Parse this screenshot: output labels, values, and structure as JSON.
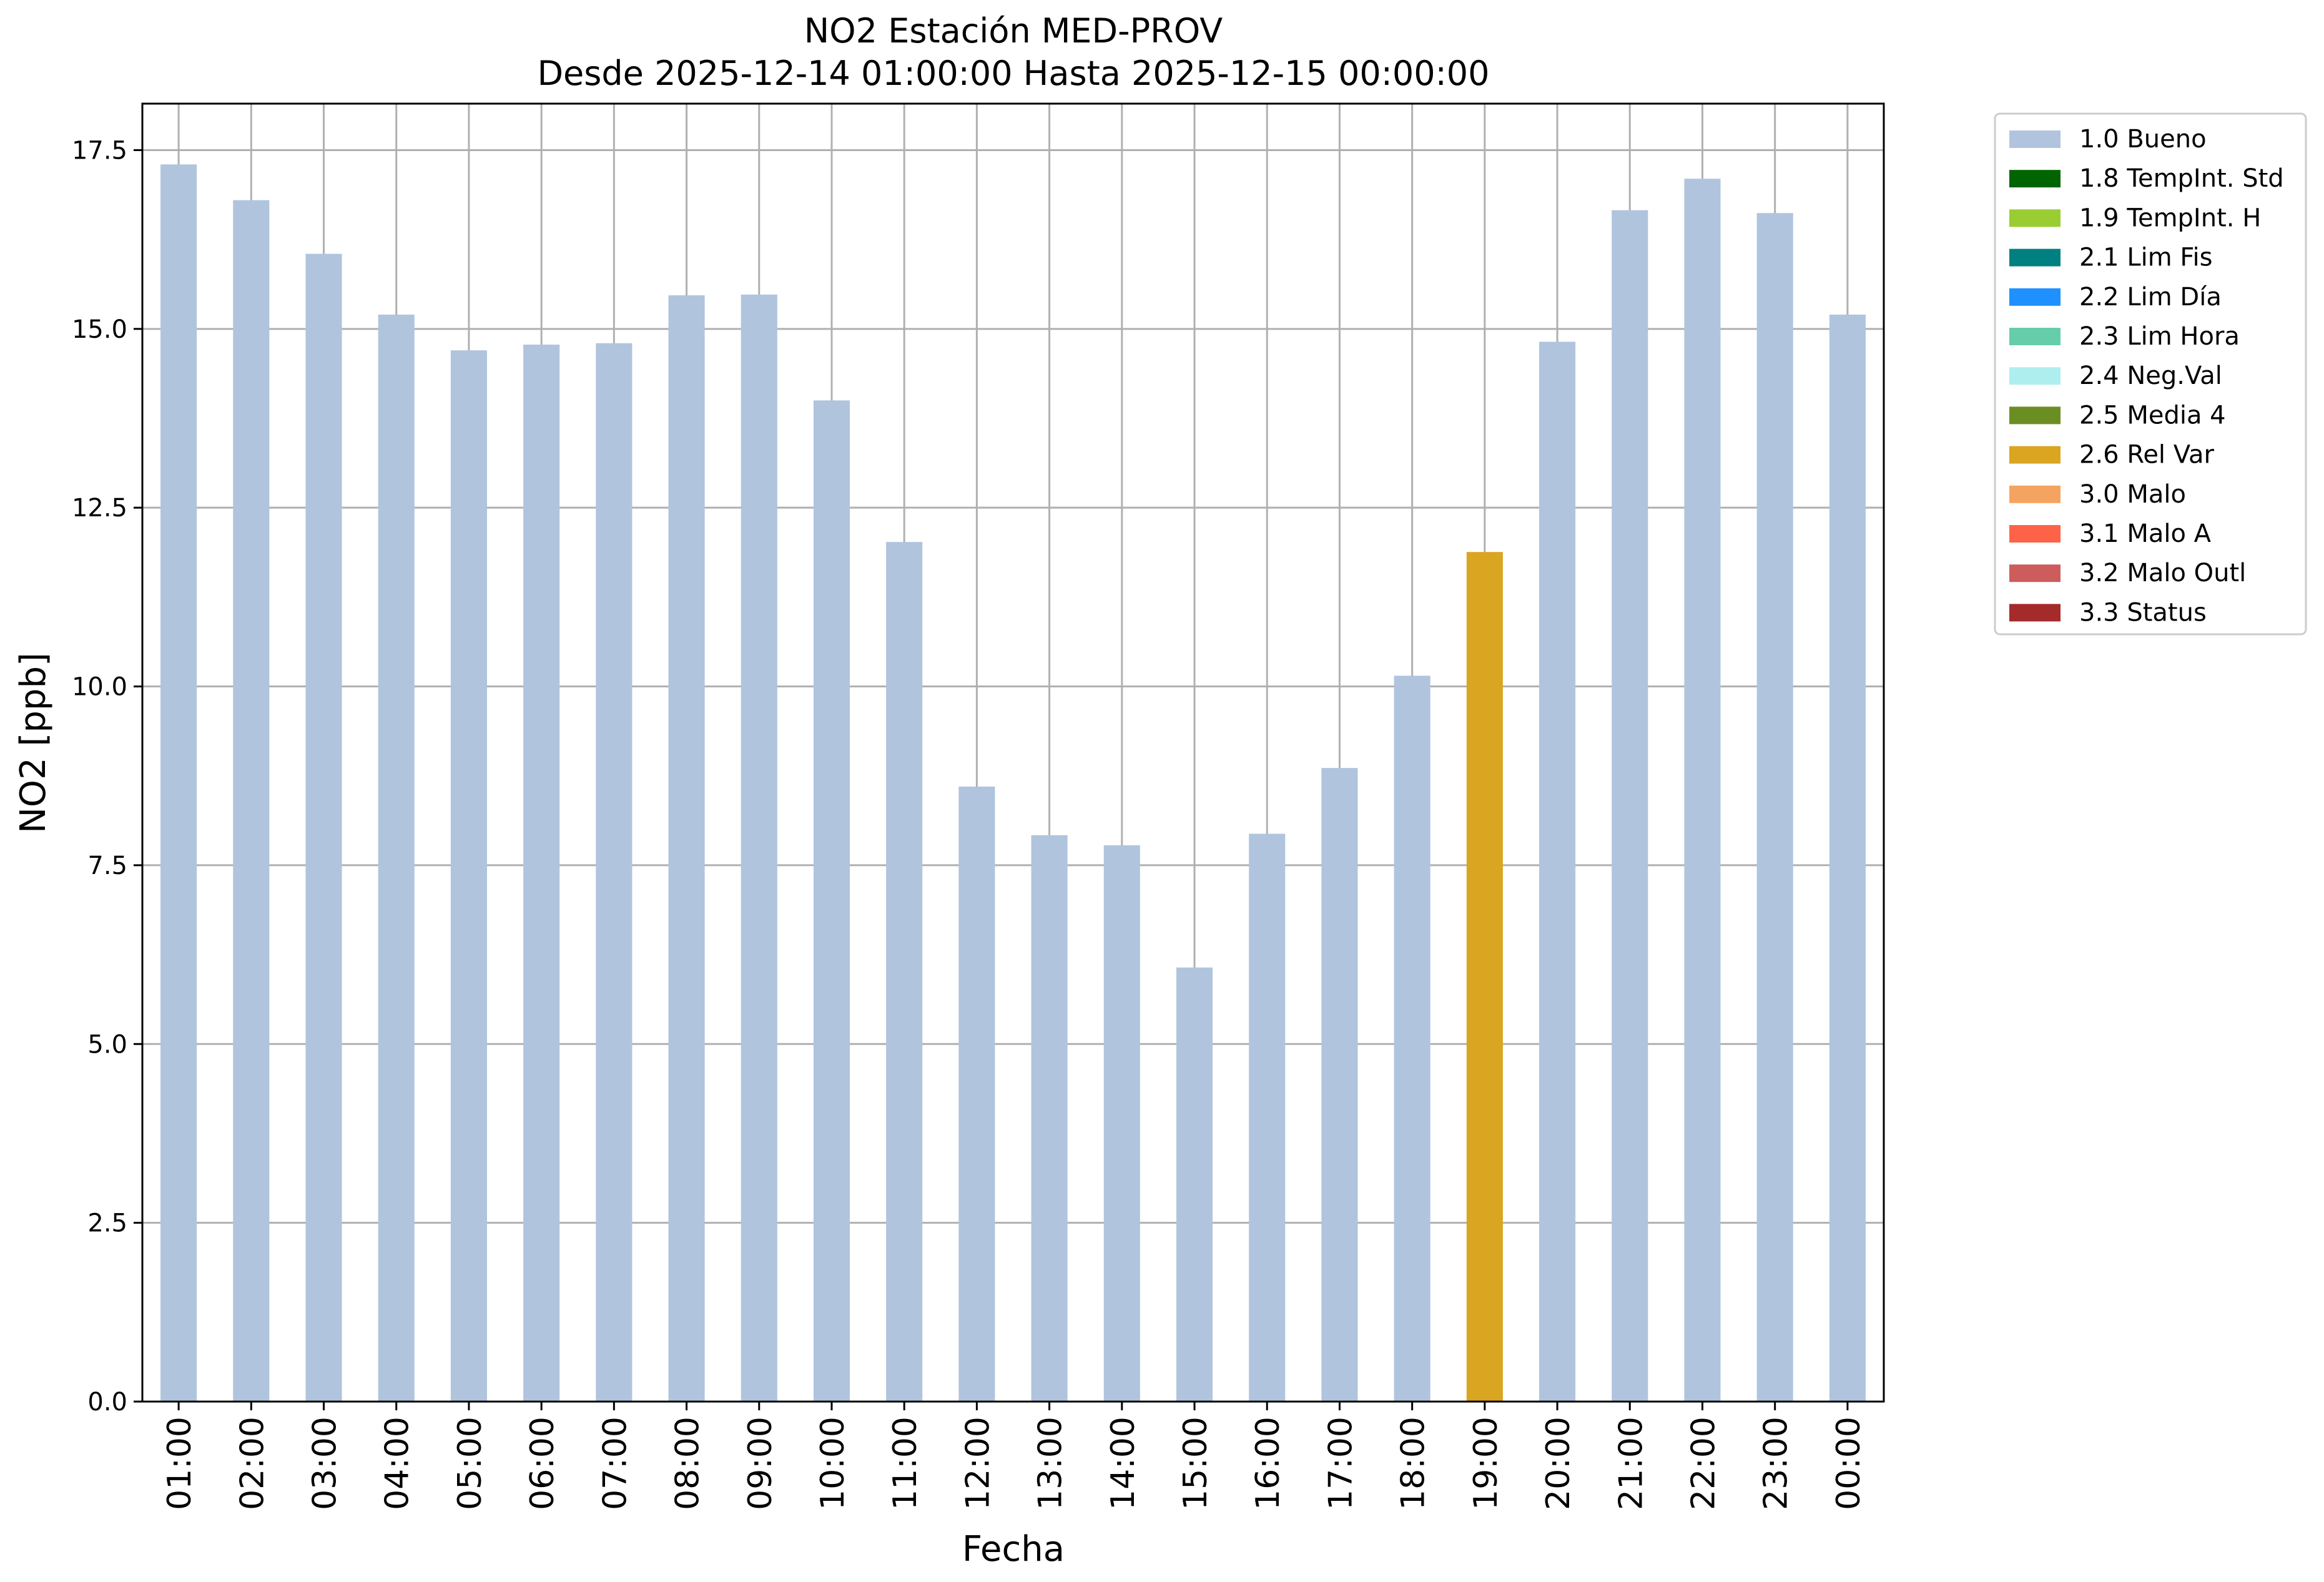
{
  "chart_data": {
    "type": "bar",
    "title": "NO2 Estación MED-PROV",
    "subtitle": "Desde 2025-12-14 01:00:00 Hasta 2025-12-15 00:00:00",
    "xlabel": "Fecha",
    "ylabel": "NO2 [ppb]",
    "ylim": [
      0,
      18.15
    ],
    "yticks": [
      0.0,
      2.5,
      5.0,
      7.5,
      10.0,
      12.5,
      15.0,
      17.5
    ],
    "ytick_labels": [
      "0.0",
      "2.5",
      "5.0",
      "7.5",
      "10.0",
      "12.5",
      "15.0",
      "17.5"
    ],
    "grid": true,
    "legend_position": "outside-top-right",
    "categories": [
      "01:00",
      "02:00",
      "03:00",
      "04:00",
      "05:00",
      "06:00",
      "07:00",
      "08:00",
      "09:00",
      "10:00",
      "11:00",
      "12:00",
      "13:00",
      "14:00",
      "15:00",
      "16:00",
      "17:00",
      "18:00",
      "19:00",
      "20:00",
      "21:00",
      "22:00",
      "23:00",
      "00:00"
    ],
    "values": [
      17.3,
      16.8,
      16.05,
      15.2,
      14.7,
      14.78,
      14.8,
      15.47,
      15.48,
      14.0,
      12.02,
      8.6,
      7.92,
      7.78,
      6.07,
      7.94,
      8.86,
      10.15,
      11.88,
      14.82,
      16.66,
      17.1,
      16.62,
      15.2
    ],
    "flags": [
      "1.0 Bueno",
      "1.0 Bueno",
      "1.0 Bueno",
      "1.0 Bueno",
      "1.0 Bueno",
      "1.0 Bueno",
      "1.0 Bueno",
      "1.0 Bueno",
      "1.0 Bueno",
      "1.0 Bueno",
      "1.0 Bueno",
      "1.0 Bueno",
      "1.0 Bueno",
      "1.0 Bueno",
      "1.0 Bueno",
      "1.0 Bueno",
      "1.0 Bueno",
      "1.0 Bueno",
      "2.6 Rel Var",
      "1.0 Bueno",
      "1.0 Bueno",
      "1.0 Bueno",
      "1.0 Bueno",
      "1.0 Bueno"
    ],
    "legend": [
      {
        "label": "1.0 Bueno",
        "color": "#b0c4de"
      },
      {
        "label": "1.8 TempInt. Std",
        "color": "#006400"
      },
      {
        "label": "1.9 TempInt. H",
        "color": "#9acd32"
      },
      {
        "label": "2.1 Lim Fis",
        "color": "#008080"
      },
      {
        "label": "2.2 Lim Día",
        "color": "#1e90ff"
      },
      {
        "label": "2.3 Lim Hora",
        "color": "#66cdaa"
      },
      {
        "label": "2.4 Neg.Val",
        "color": "#afeeee"
      },
      {
        "label": "2.5 Media 4",
        "color": "#6b8e23"
      },
      {
        "label": "2.6 Rel Var",
        "color": "#daa520"
      },
      {
        "label": "3.0 Malo",
        "color": "#f4a460"
      },
      {
        "label": "3.1 Malo A",
        "color": "#ff6347"
      },
      {
        "label": "3.2 Malo Outl",
        "color": "#cd5c5c"
      },
      {
        "label": "3.3 Status",
        "color": "#a52a2a"
      }
    ]
  }
}
